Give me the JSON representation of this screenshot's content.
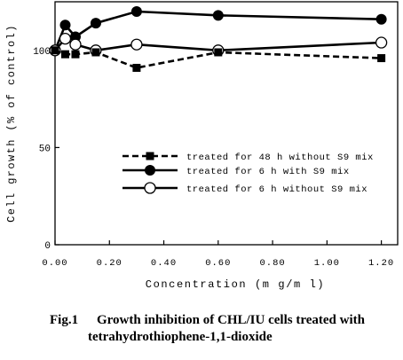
{
  "chart_data": {
    "type": "line",
    "xlabel": "Concentration (m g/m l)",
    "ylabel": "Cell growth (% of control)",
    "xlim": [
      0,
      1.26
    ],
    "ylim": [
      0,
      125
    ],
    "x_ticks": [
      "0.00",
      "0.20",
      "0.40",
      "0.60",
      "0.80",
      "1.00",
      "1.20"
    ],
    "x_tick_values": [
      0,
      0.2,
      0.4,
      0.6,
      0.8,
      1.0,
      1.2
    ],
    "y_ticks": [
      "0",
      "50",
      "100"
    ],
    "y_tick_values": [
      0,
      50,
      100
    ],
    "grid": false,
    "legend_position": "center",
    "series": [
      {
        "name": "treated for 48 h without S9 mix",
        "marker": "square",
        "line": "dashed",
        "points": [
          [
            0,
            100
          ],
          [
            0.0375,
            98
          ],
          [
            0.075,
            98
          ],
          [
            0.15,
            99
          ],
          [
            0.3,
            91
          ],
          [
            0.6,
            99
          ],
          [
            1.2,
            96
          ]
        ]
      },
      {
        "name": "treated for 6 h with S9 mix",
        "marker": "filled-circle",
        "line": "solid",
        "points": [
          [
            0,
            100
          ],
          [
            0.0375,
            113
          ],
          [
            0.075,
            107
          ],
          [
            0.15,
            114
          ],
          [
            0.3,
            120
          ],
          [
            0.6,
            118
          ],
          [
            1.2,
            116
          ]
        ]
      },
      {
        "name": "treated for 6 h without S9 mix",
        "marker": "open-circle",
        "line": "solid",
        "points": [
          [
            0,
            100
          ],
          [
            0.0375,
            106
          ],
          [
            0.075,
            103
          ],
          [
            0.15,
            100
          ],
          [
            0.3,
            103
          ],
          [
            0.6,
            100
          ],
          [
            1.2,
            104
          ]
        ]
      }
    ]
  },
  "caption": {
    "label": "Fig.1",
    "line1": "Growth inhibition of CHL/IU cells treated with",
    "line2": "tetrahydrothiophene-1,1-dioxide"
  }
}
